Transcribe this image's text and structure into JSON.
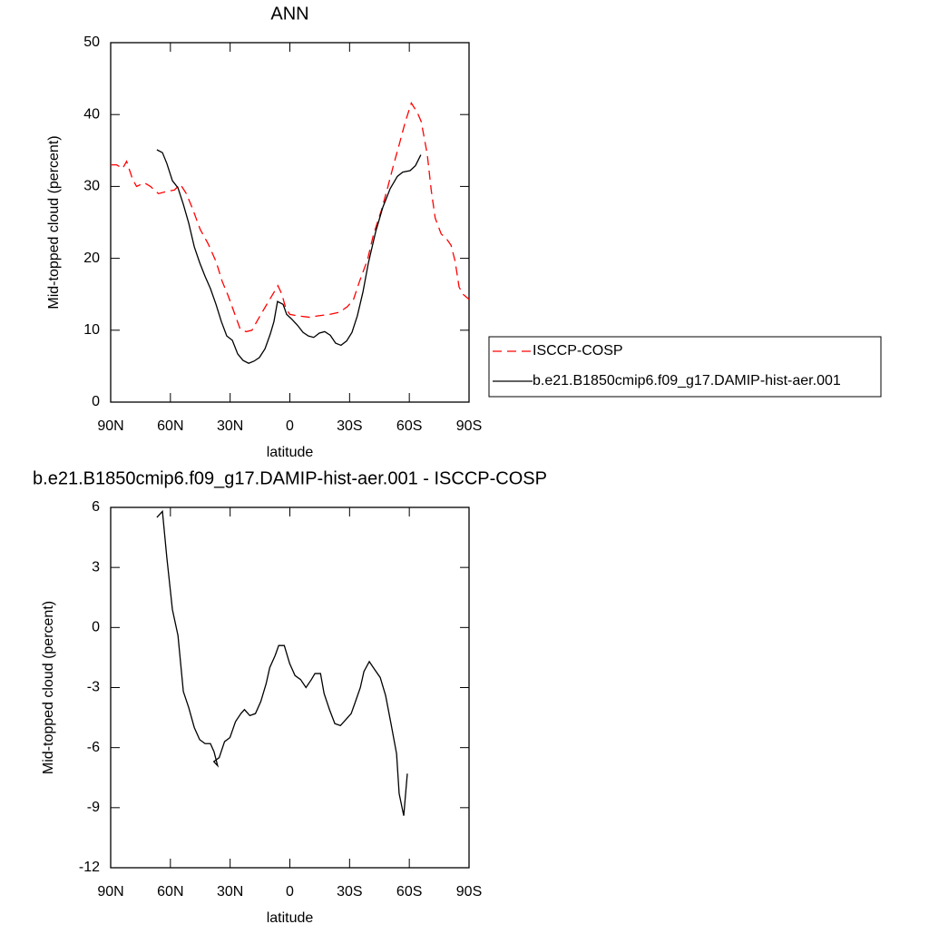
{
  "chart_data": [
    {
      "type": "line",
      "title": "ANN",
      "xlabel": "latitude",
      "ylabel": "Mid-topped cloud (percent)",
      "xlim": [
        90,
        -90
      ],
      "xticks": [
        {
          "value": 90,
          "label": "90N"
        },
        {
          "value": 60,
          "label": "60N"
        },
        {
          "value": 30,
          "label": "30N"
        },
        {
          "value": 0,
          "label": "0"
        },
        {
          "value": -30,
          "label": "30S"
        },
        {
          "value": -60,
          "label": "60S"
        },
        {
          "value": -90,
          "label": "90S"
        }
      ],
      "ylim": [
        0,
        50
      ],
      "yticks": [
        0,
        10,
        20,
        30,
        40,
        50
      ],
      "legend": "right",
      "series": [
        {
          "name": "ISCCP-COSP",
          "color": "#ff0000",
          "dash": true,
          "x": [
            90,
            87,
            84,
            82,
            79,
            77,
            73,
            70,
            66,
            62,
            58,
            55,
            52,
            49,
            45,
            41,
            37,
            34,
            31,
            28,
            25,
            22,
            19,
            16,
            12,
            9,
            6,
            4,
            2,
            0,
            -4,
            -10,
            -14,
            -20,
            -25,
            -29,
            -32,
            -35,
            -39,
            -42,
            -46,
            -49,
            -52,
            -55,
            -58,
            -61,
            -64,
            -66,
            -69,
            -71,
            -73,
            -76,
            -79,
            -81,
            -83,
            -85,
            -87,
            -90
          ],
          "values": [
            33,
            33,
            32.5,
            33.5,
            31,
            30,
            30.5,
            30,
            29,
            29.3,
            29.5,
            30.3,
            29,
            27,
            24,
            22,
            19.5,
            16.8,
            14.8,
            12.5,
            10.2,
            9.8,
            10,
            11.5,
            13.4,
            14.8,
            16.2,
            15,
            13,
            12.2,
            12,
            11.8,
            12,
            12.2,
            12.5,
            13.3,
            14.3,
            16.8,
            19.8,
            23.3,
            26.7,
            29.7,
            32.9,
            35.9,
            39,
            41.6,
            40.3,
            39,
            34.5,
            29.5,
            25.6,
            23.4,
            22.6,
            21.8,
            19.6,
            16,
            15,
            14.3
          ]
        },
        {
          "name": "b.e21.B1850cmip6.f09_g17.DAMIP-hist-aer.001",
          "color": "#000000",
          "dash": false,
          "x": [
            66.8,
            64,
            61.8,
            59,
            56.2,
            53.5,
            50.8,
            48,
            45.3,
            42.6,
            39.9,
            37.1,
            34.4,
            31.7,
            28.9,
            26.2,
            23.5,
            20.7,
            18,
            15.3,
            12.5,
            9.8,
            8,
            6.2,
            3.4,
            1.6,
            -1.1,
            -3.8,
            -6.6,
            -9.3,
            -12,
            -14.8,
            -17.5,
            -20.3,
            -23,
            -25.7,
            -28.5,
            -31.2,
            -33.9,
            -36.7,
            -39.4,
            -43.1,
            -46.7,
            -50.4,
            -54,
            -56.7,
            -60.4,
            -63.1,
            -65.8
          ],
          "values": [
            35.1,
            34.7,
            33.2,
            30.8,
            29.8,
            27.5,
            24.9,
            21.6,
            19.4,
            17.5,
            15.8,
            13.6,
            11.2,
            9.2,
            8.6,
            6.7,
            5.8,
            5.4,
            5.7,
            6.2,
            7.4,
            9.5,
            11.2,
            14,
            13.6,
            12.2,
            11.5,
            10.7,
            9.7,
            9.2,
            9,
            9.6,
            9.8,
            9.3,
            8.2,
            7.9,
            8.5,
            9.7,
            12,
            15.3,
            19.3,
            23.7,
            27.1,
            29.7,
            31.4,
            32,
            32.2,
            32.9,
            34.4
          ]
        }
      ]
    },
    {
      "type": "line",
      "title": "b.e21.B1850cmip6.f09_g17.DAMIP-hist-aer.001 - ISCCP-COSP",
      "xlabel": "latitude",
      "ylabel": "Mid-topped cloud (percent)",
      "xlim": [
        90,
        -90
      ],
      "xticks": [
        {
          "value": 90,
          "label": "90N"
        },
        {
          "value": 60,
          "label": "60N"
        },
        {
          "value": 30,
          "label": "30N"
        },
        {
          "value": 0,
          "label": "0"
        },
        {
          "value": -30,
          "label": "30S"
        },
        {
          "value": -60,
          "label": "60S"
        },
        {
          "value": -90,
          "label": "90S"
        }
      ],
      "ylim": [
        -12,
        6
      ],
      "yticks": [
        -12,
        -9,
        -6,
        -3,
        0,
        3,
        6
      ],
      "series": [
        {
          "color": "#000000",
          "dash": false,
          "x": [
            66.8,
            64,
            61.8,
            59,
            56.2,
            53.5,
            50.8,
            48,
            45.3,
            42.6,
            39.9,
            38.1,
            36.3,
            38.2,
            35.5,
            32.8,
            30.1,
            27.3,
            24.6,
            22.8,
            20.1,
            17.3,
            14.6,
            11.9,
            10.1,
            7.4,
            5.6,
            2.8,
            0.1,
            -2.6,
            -5.4,
            -8.1,
            -10.8,
            -12.6,
            -15.4,
            -17.2,
            -19.9,
            -22.6,
            -25.4,
            -28.1,
            -30.8,
            -32.6,
            -35.4,
            -37.2,
            -39.9,
            -42.6,
            -45.4,
            -48.1,
            -50.8,
            -53.6,
            -54.9,
            -57.2,
            -59
          ],
          "values": [
            5.5,
            5.8,
            3.5,
            0.9,
            -0.4,
            -3.2,
            -4,
            -5,
            -5.6,
            -5.8,
            -5.8,
            -6.2,
            -6.9,
            -6.7,
            -6.5,
            -5.7,
            -5.5,
            -4.7,
            -4.3,
            -4.1,
            -4.4,
            -4.3,
            -3.7,
            -2.8,
            -2,
            -1.4,
            -0.9,
            -0.9,
            -1.8,
            -2.4,
            -2.6,
            -3,
            -2.6,
            -2.3,
            -2.3,
            -3.3,
            -4.1,
            -4.8,
            -4.9,
            -4.6,
            -4.3,
            -3.8,
            -3,
            -2.2,
            -1.7,
            -2.1,
            -2.5,
            -3.4,
            -4.8,
            -6.3,
            -8.3,
            -9.4,
            -7.3
          ]
        }
      ]
    }
  ]
}
